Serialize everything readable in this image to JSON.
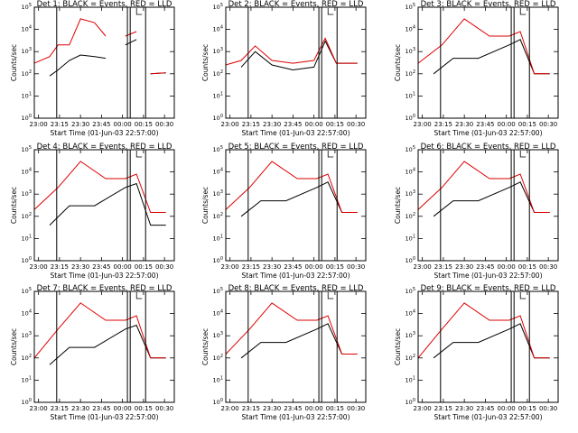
{
  "colors": {
    "events": "#000000",
    "lld": "#dd0000",
    "frame": "#000000"
  },
  "chart_data": [
    {
      "type": "line",
      "title": "Det 1: BLACK = Events, RED = LLD",
      "xlabel": "Start Time (01-Jun-03 22:57:00)",
      "ylabel": "Counts/sec",
      "yscale": "log",
      "x_ticks": [
        "23:00",
        "23:15",
        "23:30",
        "23:45",
        "00:00",
        "00:15",
        "00:30"
      ],
      "y_ticks": [
        "10^0",
        "10^1",
        "10^2",
        "10^3",
        "10^4",
        "10^5"
      ],
      "ylim": [
        1,
        100000
      ],
      "series": [
        {
          "name": "Events",
          "points": [
            [
              "23:00",
              null
            ],
            [
              "23:08",
              80
            ],
            [
              "23:14",
              150
            ],
            [
              "23:22",
              400
            ],
            [
              "23:30",
              700
            ],
            [
              "23:40",
              600
            ],
            [
              "23:48",
              500
            ],
            [
              "23:55",
              null
            ],
            [
              "00:02",
              2000
            ],
            [
              "00:10",
              3500
            ],
            [
              "00:16",
              null
            ],
            [
              "00:20",
              100
            ],
            [
              "00:31",
              110
            ]
          ]
        },
        {
          "name": "LLD",
          "points": [
            [
              "22:57",
              300
            ],
            [
              "23:08",
              600
            ],
            [
              "23:14",
              2000
            ],
            [
              "23:22",
              2000
            ],
            [
              "23:30",
              30000
            ],
            [
              "23:40",
              20000
            ],
            [
              "23:48",
              5000
            ],
            [
              "23:55",
              null
            ],
            [
              "00:02",
              5000
            ],
            [
              "00:10",
              8000
            ],
            [
              "00:16",
              null
            ],
            [
              "00:20",
              100
            ],
            [
              "00:31",
              110
            ]
          ]
        }
      ]
    },
    {
      "type": "line",
      "title": "Det 2: BLACK = Events, RED = LLD",
      "xlabel": "Start Time (01-Jun-03 22:57:00)",
      "ylabel": "Counts/sec",
      "yscale": "log",
      "x_ticks": [
        "23:00",
        "23:15",
        "23:30",
        "23:45",
        "00:00",
        "00:15",
        "00:30"
      ],
      "y_ticks": [
        "10^0",
        "10^1",
        "10^2",
        "10^3",
        "10^4",
        "10^5"
      ],
      "ylim": [
        1,
        100000
      ],
      "series": [
        {
          "name": "Events",
          "points": [
            [
              "23:08",
              200
            ],
            [
              "23:18",
              1000
            ],
            [
              "23:30",
              250
            ],
            [
              "23:45",
              150
            ],
            [
              "00:00",
              200
            ],
            [
              "00:08",
              3000
            ],
            [
              "00:16",
              300
            ],
            [
              "00:31",
              300
            ]
          ]
        },
        {
          "name": "LLD",
          "points": [
            [
              "22:57",
              250
            ],
            [
              "23:08",
              400
            ],
            [
              "23:18",
              1800
            ],
            [
              "23:30",
              400
            ],
            [
              "23:45",
              300
            ],
            [
              "00:00",
              400
            ],
            [
              "00:08",
              4000
            ],
            [
              "00:16",
              300
            ],
            [
              "00:31",
              300
            ]
          ]
        }
      ]
    },
    {
      "type": "line",
      "title": "Det 3: BLACK = Events, RED = LLD",
      "xlabel": "Start Time (01-Jun-03 22:57:00)",
      "ylabel": "Counts/sec",
      "yscale": "log",
      "x_ticks": [
        "23:00",
        "23:15",
        "23:30",
        "23:45",
        "00:00",
        "00:15",
        "00:30"
      ],
      "y_ticks": [
        "10^0",
        "10^1",
        "10^2",
        "10^3",
        "10^4",
        "10^5"
      ],
      "ylim": [
        1,
        100000
      ],
      "series": [
        {
          "name": "Events",
          "points": [
            [
              "23:08",
              100
            ],
            [
              "23:22",
              500
            ],
            [
              "23:40",
              500
            ],
            [
              "00:02",
              2000
            ],
            [
              "00:10",
              3500
            ],
            [
              "00:20",
              100
            ],
            [
              "00:31",
              100
            ]
          ]
        },
        {
          "name": "LLD",
          "points": [
            [
              "22:57",
              300
            ],
            [
              "23:14",
              2000
            ],
            [
              "23:30",
              30000
            ],
            [
              "23:48",
              5000
            ],
            [
              "00:02",
              5000
            ],
            [
              "00:10",
              8000
            ],
            [
              "00:20",
              100
            ],
            [
              "00:31",
              100
            ]
          ]
        }
      ]
    },
    {
      "type": "line",
      "title": "Det 4: BLACK = Events, RED = LLD",
      "xlabel": "Start Time (01-Jun-03 22:57:00)",
      "ylabel": "Counts/sec",
      "yscale": "log",
      "x_ticks": [
        "23:00",
        "23:15",
        "23:30",
        "23:45",
        "00:00",
        "00:15",
        "00:30"
      ],
      "y_ticks": [
        "10^0",
        "10^1",
        "10^2",
        "10^3",
        "10^4",
        "10^5"
      ],
      "ylim": [
        1,
        100000
      ],
      "series": [
        {
          "name": "Events",
          "points": [
            [
              "23:08",
              40
            ],
            [
              "23:22",
              300
            ],
            [
              "23:40",
              300
            ],
            [
              "00:02",
              2000
            ],
            [
              "00:10",
              3000
            ],
            [
              "00:20",
              40
            ],
            [
              "00:31",
              40
            ]
          ]
        },
        {
          "name": "LLD",
          "points": [
            [
              "22:57",
              200
            ],
            [
              "23:14",
              2000
            ],
            [
              "23:30",
              30000
            ],
            [
              "23:48",
              5000
            ],
            [
              "00:02",
              5000
            ],
            [
              "00:10",
              8000
            ],
            [
              "00:20",
              150
            ],
            [
              "00:31",
              150
            ]
          ]
        }
      ]
    },
    {
      "type": "line",
      "title": "Det 5: BLACK = Events, RED = LLD",
      "xlabel": "Start Time (01-Jun-03 22:57:00)",
      "ylabel": "Counts/sec",
      "yscale": "log",
      "x_ticks": [
        "23:00",
        "23:15",
        "23:30",
        "23:45",
        "00:00",
        "00:15",
        "00:30"
      ],
      "y_ticks": [
        "10^0",
        "10^1",
        "10^2",
        "10^3",
        "10^4",
        "10^5"
      ],
      "ylim": [
        1,
        100000
      ],
      "series": [
        {
          "name": "Events",
          "points": [
            [
              "23:08",
              100
            ],
            [
              "23:22",
              500
            ],
            [
              "23:40",
              500
            ],
            [
              "00:02",
              2000
            ],
            [
              "00:10",
              3500
            ],
            [
              "00:20",
              150
            ],
            [
              "00:31",
              150
            ]
          ]
        },
        {
          "name": "LLD",
          "points": [
            [
              "22:57",
              200
            ],
            [
              "23:14",
              2000
            ],
            [
              "23:30",
              30000
            ],
            [
              "23:48",
              5000
            ],
            [
              "00:02",
              5000
            ],
            [
              "00:10",
              8000
            ],
            [
              "00:20",
              150
            ],
            [
              "00:31",
              150
            ]
          ]
        }
      ]
    },
    {
      "type": "line",
      "title": "Det 6: BLACK = Events, RED = LLD",
      "xlabel": "Start Time (01-Jun-03 22:57:00)",
      "ylabel": "Counts/sec",
      "yscale": "log",
      "x_ticks": [
        "23:00",
        "23:15",
        "23:30",
        "23:45",
        "00:00",
        "00:15",
        "00:30"
      ],
      "y_ticks": [
        "10^0",
        "10^1",
        "10^2",
        "10^3",
        "10^4",
        "10^5"
      ],
      "ylim": [
        1,
        100000
      ],
      "series": [
        {
          "name": "Events",
          "points": [
            [
              "23:08",
              100
            ],
            [
              "23:22",
              500
            ],
            [
              "23:40",
              500
            ],
            [
              "00:02",
              2000
            ],
            [
              "00:10",
              3500
            ],
            [
              "00:20",
              150
            ],
            [
              "00:31",
              150
            ]
          ]
        },
        {
          "name": "LLD",
          "points": [
            [
              "22:57",
              200
            ],
            [
              "23:14",
              2000
            ],
            [
              "23:30",
              30000
            ],
            [
              "23:48",
              5000
            ],
            [
              "00:02",
              5000
            ],
            [
              "00:10",
              8000
            ],
            [
              "00:20",
              150
            ],
            [
              "00:31",
              150
            ]
          ]
        }
      ]
    },
    {
      "type": "line",
      "title": "Det 7: BLACK = Events, RED = LLD",
      "xlabel": "Start Time (01-Jun-03 22:57:00)",
      "ylabel": "Counts/sec",
      "yscale": "log",
      "x_ticks": [
        "23:00",
        "23:15",
        "23:30",
        "23:45",
        "00:00",
        "00:15",
        "00:30"
      ],
      "y_ticks": [
        "10^0",
        "10^1",
        "10^2",
        "10^3",
        "10^4",
        "10^5"
      ],
      "ylim": [
        1,
        100000
      ],
      "series": [
        {
          "name": "Events",
          "points": [
            [
              "23:08",
              50
            ],
            [
              "23:22",
              300
            ],
            [
              "23:40",
              300
            ],
            [
              "00:02",
              2000
            ],
            [
              "00:10",
              3000
            ],
            [
              "00:20",
              100
            ],
            [
              "00:31",
              100
            ]
          ]
        },
        {
          "name": "LLD",
          "points": [
            [
              "22:57",
              100
            ],
            [
              "23:14",
              2000
            ],
            [
              "23:30",
              30000
            ],
            [
              "23:48",
              5000
            ],
            [
              "00:02",
              5000
            ],
            [
              "00:10",
              8000
            ],
            [
              "00:20",
              100
            ],
            [
              "00:31",
              100
            ]
          ]
        }
      ]
    },
    {
      "type": "line",
      "title": "Det 8: BLACK = Events, RED = LLD",
      "xlabel": "Start Time (01-Jun-03 22:57:00)",
      "ylabel": "Counts/sec",
      "yscale": "log",
      "x_ticks": [
        "23:00",
        "23:15",
        "23:30",
        "23:45",
        "00:00",
        "00:15",
        "00:30"
      ],
      "y_ticks": [
        "10^0",
        "10^1",
        "10^2",
        "10^3",
        "10^4",
        "10^5"
      ],
      "ylim": [
        1,
        100000
      ],
      "series": [
        {
          "name": "Events",
          "points": [
            [
              "23:08",
              100
            ],
            [
              "23:22",
              500
            ],
            [
              "23:40",
              500
            ],
            [
              "00:02",
              2000
            ],
            [
              "00:10",
              3500
            ],
            [
              "00:20",
              150
            ],
            [
              "00:31",
              150
            ]
          ]
        },
        {
          "name": "LLD",
          "points": [
            [
              "22:57",
              150
            ],
            [
              "23:14",
              2000
            ],
            [
              "23:30",
              30000
            ],
            [
              "23:48",
              5000
            ],
            [
              "00:02",
              5000
            ],
            [
              "00:10",
              8000
            ],
            [
              "00:20",
              150
            ],
            [
              "00:31",
              150
            ]
          ]
        }
      ]
    },
    {
      "type": "line",
      "title": "Det 9: BLACK = Events, RED = LLD",
      "xlabel": "Start Time (01-Jun-03 22:57:00)",
      "ylabel": "Counts/sec",
      "yscale": "log",
      "x_ticks": [
        "23:00",
        "23:15",
        "23:30",
        "23:45",
        "00:00",
        "00:15",
        "00:30"
      ],
      "y_ticks": [
        "10^0",
        "10^1",
        "10^2",
        "10^3",
        "10^4",
        "10^5"
      ],
      "ylim": [
        1,
        100000
      ],
      "series": [
        {
          "name": "Events",
          "points": [
            [
              "23:08",
              100
            ],
            [
              "23:22",
              500
            ],
            [
              "23:40",
              500
            ],
            [
              "00:02",
              2000
            ],
            [
              "00:10",
              3500
            ],
            [
              "00:20",
              100
            ],
            [
              "00:31",
              100
            ]
          ]
        },
        {
          "name": "LLD",
          "points": [
            [
              "22:57",
              100
            ],
            [
              "23:14",
              2000
            ],
            [
              "23:30",
              30000
            ],
            [
              "23:48",
              5000
            ],
            [
              "00:02",
              5000
            ],
            [
              "00:10",
              8000
            ],
            [
              "00:20",
              100
            ],
            [
              "00:31",
              100
            ]
          ]
        }
      ]
    }
  ]
}
